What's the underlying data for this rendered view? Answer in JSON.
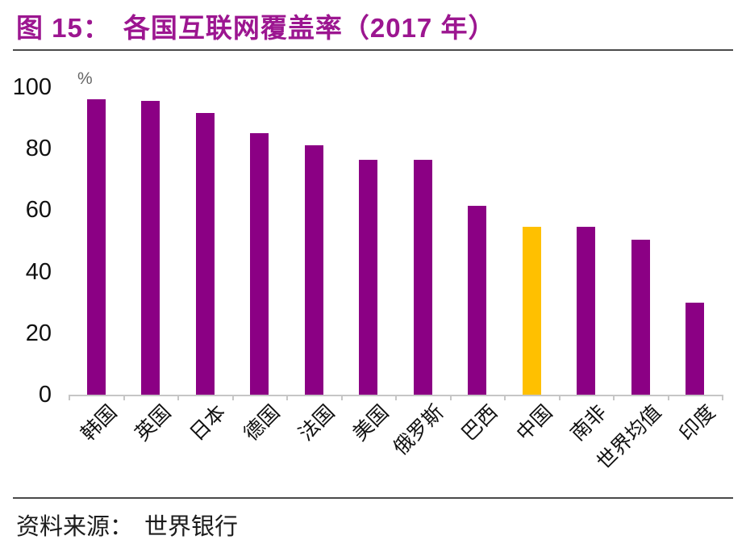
{
  "title": {
    "prefix": "图 15：",
    "text": "各国互联网覆盖率（2017 年）"
  },
  "chart_data": {
    "type": "bar",
    "title": "各国互联网覆盖率（2017 年）",
    "categories": [
      "韩国",
      "英国",
      "日本",
      "德国",
      "法国",
      "美国",
      "俄罗斯",
      "巴西",
      "中国",
      "南非",
      "世界均值",
      "印度"
    ],
    "values": [
      96,
      95.5,
      91.5,
      85,
      81,
      76.5,
      76.5,
      61.5,
      54.5,
      54.5,
      50.5,
      30
    ],
    "unit_label": "%",
    "xlabel": "",
    "ylabel": "%",
    "y_ticks": [
      0,
      20,
      40,
      60,
      80,
      100
    ],
    "ylim": [
      0,
      100
    ],
    "grid": false,
    "legend_position": "none",
    "bar_color": "#8B0084",
    "highlight_color": "#FFC000",
    "highlight_index": 8,
    "highlight_category": "中国"
  },
  "source": {
    "label": "资料来源：",
    "value": "世界银行"
  },
  "colors": {
    "title": "#9C1690",
    "bar": "#8B0084",
    "highlight": "#FFC000",
    "divider": "#4A4A4A",
    "axis": "#C6C6C6"
  }
}
